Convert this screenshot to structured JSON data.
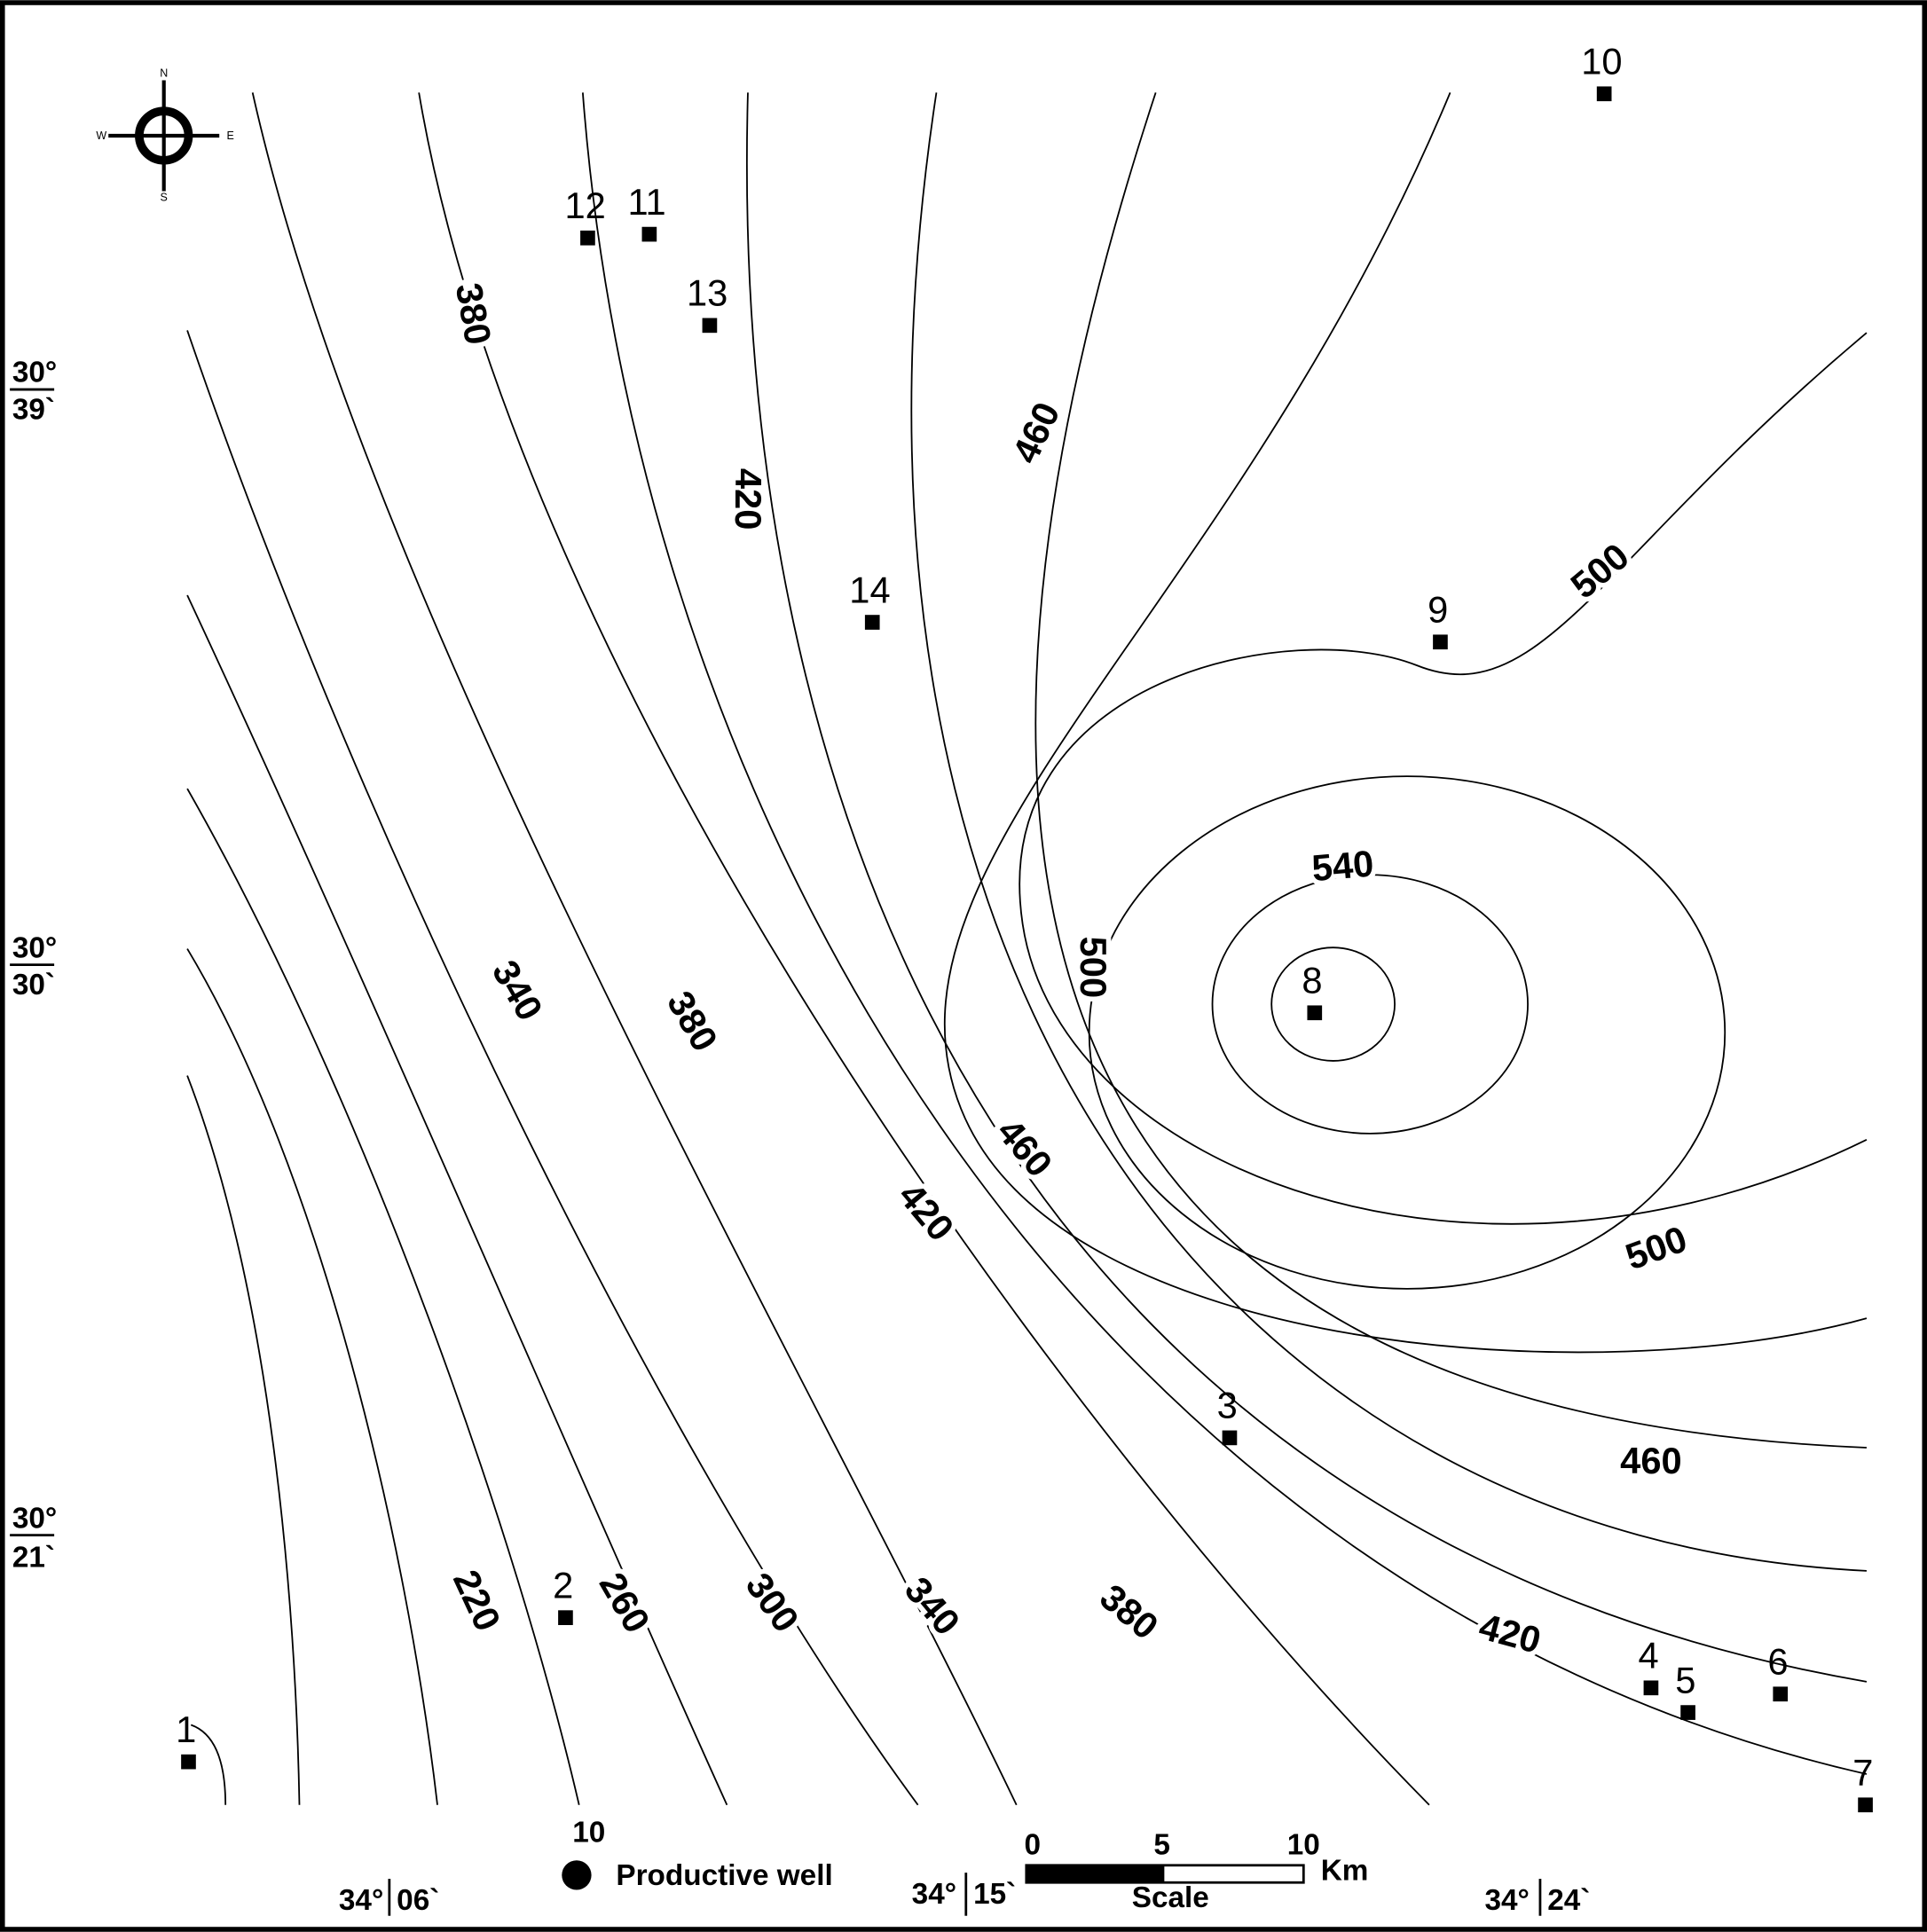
{
  "compass": {
    "n": "N",
    "e": "E",
    "s": "S",
    "w": "W"
  },
  "latitudes": [
    {
      "deg": "30°",
      "min": "39`"
    },
    {
      "deg": "30°",
      "min": "30`"
    },
    {
      "deg": "30°",
      "min": "21`"
    }
  ],
  "longitudes": [
    {
      "deg": "34°",
      "min": "06`"
    },
    {
      "deg": "34°",
      "min": "15`"
    },
    {
      "deg": "34°",
      "min": "24`"
    }
  ],
  "wells": [
    "1",
    "2",
    "3",
    "4",
    "5",
    "6",
    "7",
    "8",
    "9",
    "10",
    "11",
    "12",
    "13",
    "14"
  ],
  "contour_labels": [
    "380",
    "420",
    "460",
    "500",
    "540",
    "500",
    "500",
    "460",
    "420",
    "380",
    "340",
    "300",
    "260",
    "220",
    "340",
    "380",
    "460",
    "420"
  ],
  "legend": {
    "marker_label": "10",
    "label": "Productive well"
  },
  "scale_bar": {
    "ticks": [
      "0",
      "5",
      "10"
    ],
    "unit": "Km",
    "title": "Scale"
  }
}
